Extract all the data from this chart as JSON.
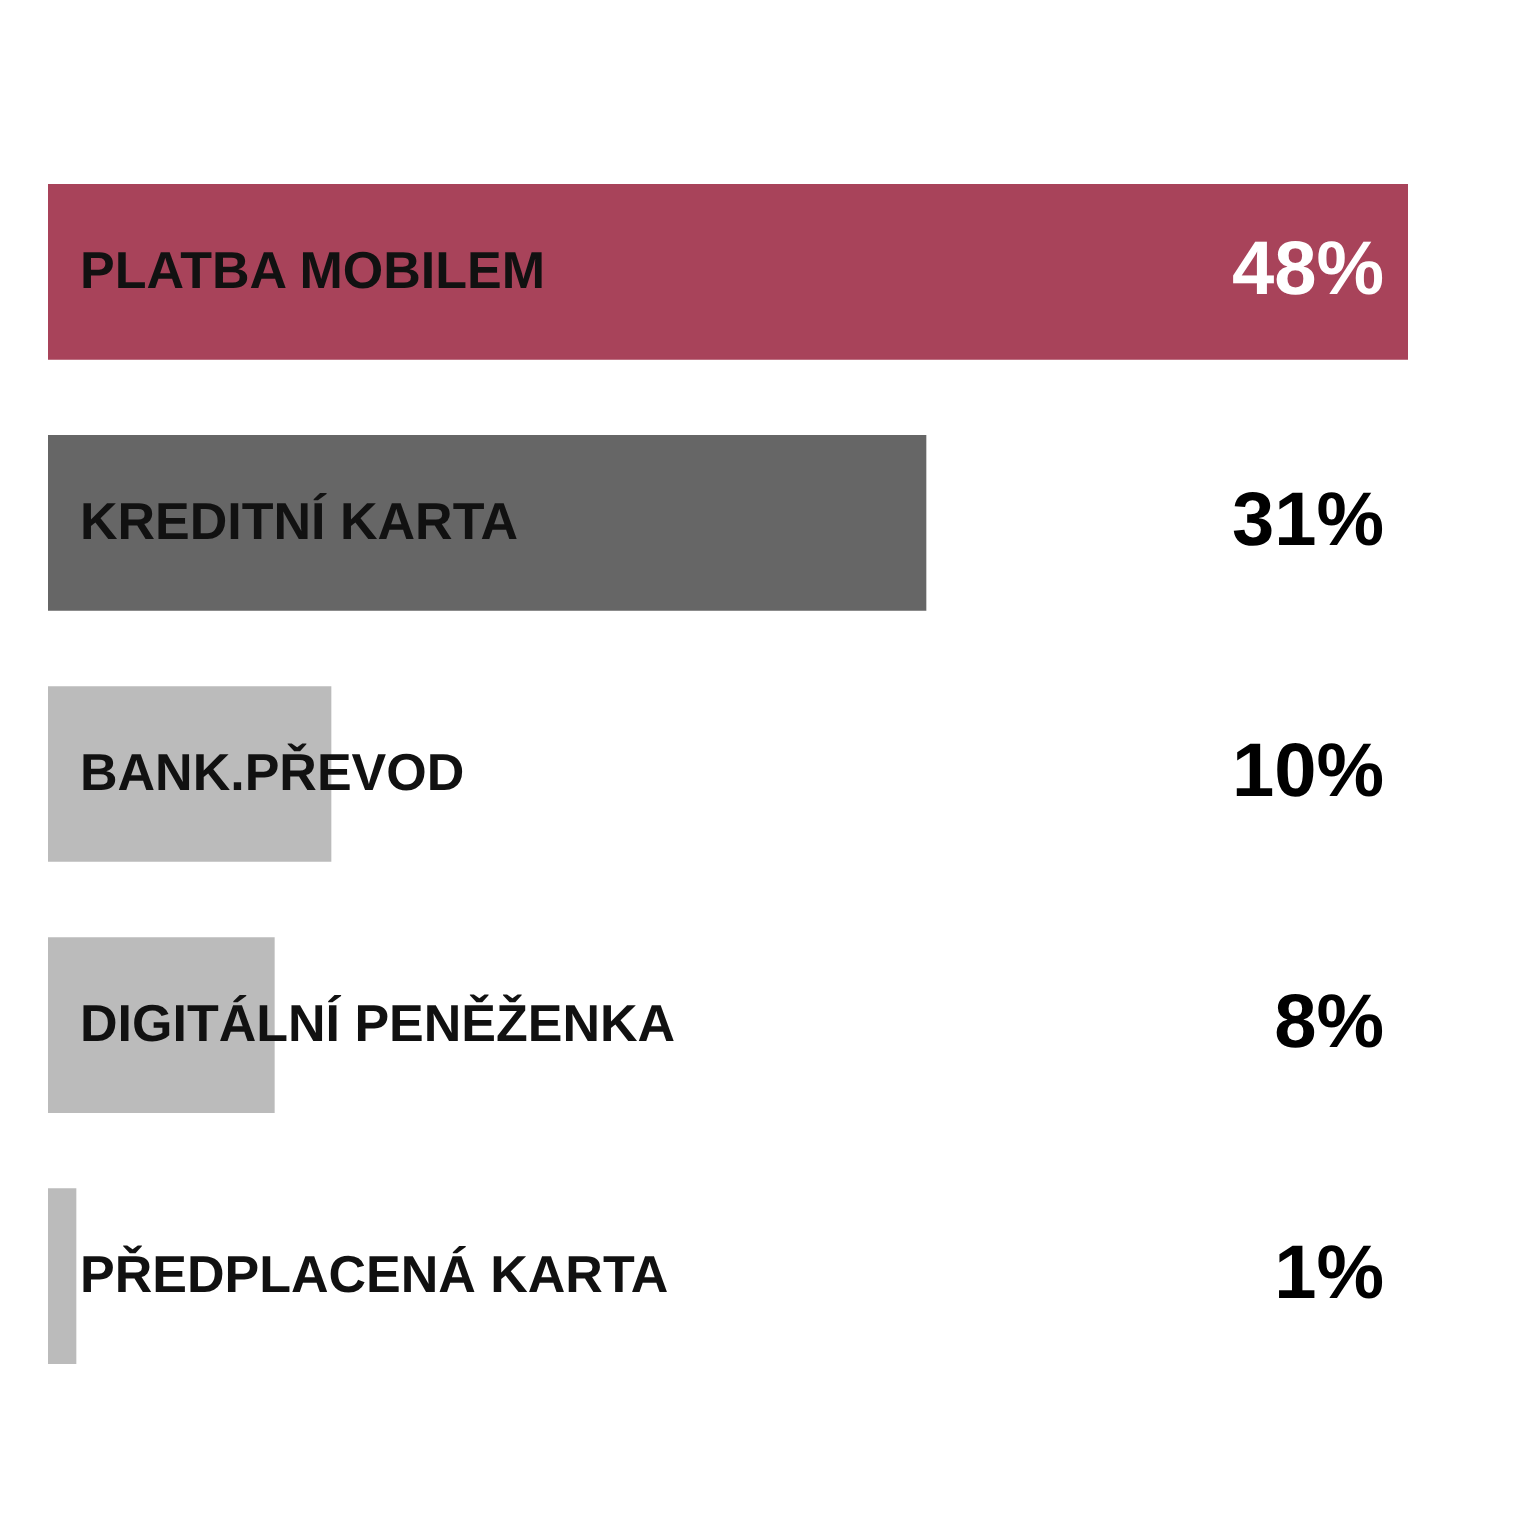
{
  "chart_data": {
    "type": "bar",
    "orientation": "horizontal",
    "categories": [
      "PLATBA MOBILEM",
      "KREDITNÍ KARTA",
      "BANK.PŘEVOD",
      "DIGITÁLNÍ PENĚŽENKA",
      "PŘEDPLACENÁ KARTA"
    ],
    "values": [
      48,
      31,
      10,
      8,
      1
    ],
    "colors": [
      "#a8435a",
      "#666666",
      "#bbbbbb",
      "#bbbbbb",
      "#bbbbbb"
    ],
    "value_labels": [
      "48%",
      "31%",
      "10%",
      "8%",
      "1%"
    ]
  }
}
